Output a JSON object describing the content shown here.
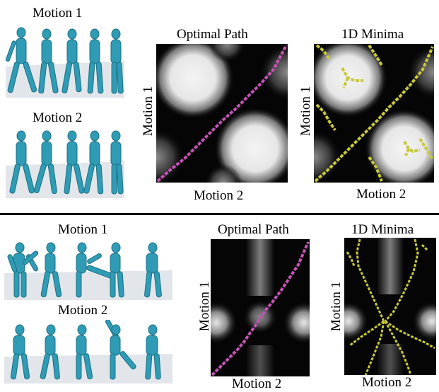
{
  "top": {
    "motion1_label": "Motion 1",
    "motion2_label": "Motion 2",
    "optimal_path_title": "Optimal Path",
    "minima_title": "1D Minima",
    "panel_ylabel": "Motion 1",
    "panel_xlabel": "Motion 2"
  },
  "bottom": {
    "motion1_label": "Motion 1",
    "motion2_label": "Motion 2",
    "optimal_path_title": "Optimal Path",
    "minima_title": "1D Minima",
    "panel_ylabel": "Motion 1",
    "panel_xlabel": "Motion 2"
  },
  "colors": {
    "path": "#c653b7",
    "minima": "#c8c83a",
    "figure": "#2f9bb4",
    "floor": "#dfe3e8"
  }
}
